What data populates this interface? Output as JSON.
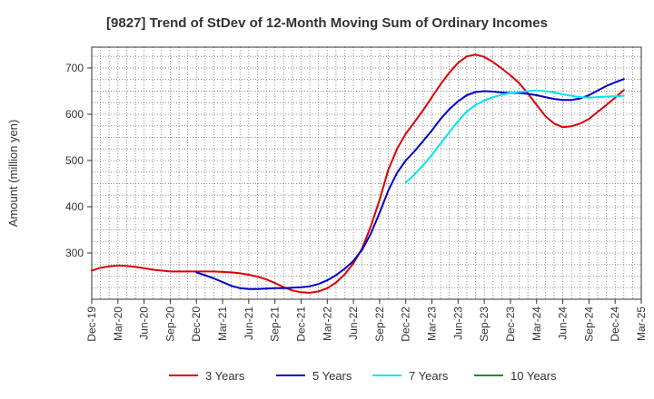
{
  "chart_data": {
    "type": "line",
    "title": "[9827]  Trend of StDev of 12-Month Moving Sum of Ordinary Incomes",
    "xlabel": "",
    "ylabel": "Amount (million yen)",
    "ylim": [
      200,
      745
    ],
    "yticks": [
      300,
      400,
      500,
      600,
      700
    ],
    "x_tick_labels": [
      "Dec-19",
      "Mar-20",
      "Jun-20",
      "Sep-20",
      "Dec-20",
      "Mar-21",
      "Jun-21",
      "Sep-21",
      "Dec-21",
      "Mar-22",
      "Jun-22",
      "Sep-22",
      "Dec-22",
      "Mar-23",
      "Jun-23",
      "Sep-23",
      "Dec-23",
      "Mar-24",
      "Jun-24",
      "Sep-24",
      "Dec-24",
      "Mar-25"
    ],
    "grid": true,
    "legend_position": "bottom",
    "series": [
      {
        "name": "3 Years",
        "color": "#dd0000",
        "start_index": 0,
        "values": [
          262,
          268,
          271,
          273,
          272,
          270,
          267,
          264,
          262,
          260,
          260,
          260,
          260,
          260,
          260,
          259,
          258,
          256,
          253,
          249,
          243,
          235,
          226,
          219,
          215,
          214,
          217,
          224,
          236,
          254,
          278,
          310,
          358,
          415,
          480,
          525,
          558,
          583,
          609,
          637,
          665,
          690,
          711,
          725,
          729,
          724,
          713,
          699,
          684,
          667,
          645,
          620,
          596,
          580,
          572,
          574,
          580,
          590,
          605,
          620,
          636,
          652
        ]
      },
      {
        "name": "5 Years",
        "color": "#0000cc",
        "start_index": 12,
        "values": [
          258,
          252,
          245,
          237,
          229,
          224,
          222,
          222,
          223,
          224,
          224,
          225,
          226,
          228,
          233,
          241,
          252,
          266,
          283,
          307,
          342,
          387,
          435,
          473,
          500,
          520,
          542,
          565,
          590,
          611,
          628,
          641,
          648,
          650,
          649,
          647,
          646,
          646,
          644,
          641,
          637,
          633,
          631,
          631,
          634,
          641,
          651,
          661,
          669,
          676
        ]
      },
      {
        "name": "7 Years",
        "color": "#00e5ee",
        "start_index": 36,
        "values": [
          452,
          470,
          490,
          512,
          537,
          561,
          585,
          606,
          620,
          630,
          637,
          642,
          646,
          648,
          650,
          651,
          650,
          647,
          643,
          640,
          637,
          636,
          637,
          638,
          639,
          640
        ]
      },
      {
        "name": "10 Years",
        "color": "#228b22",
        "start_index": 0,
        "values": []
      }
    ]
  }
}
